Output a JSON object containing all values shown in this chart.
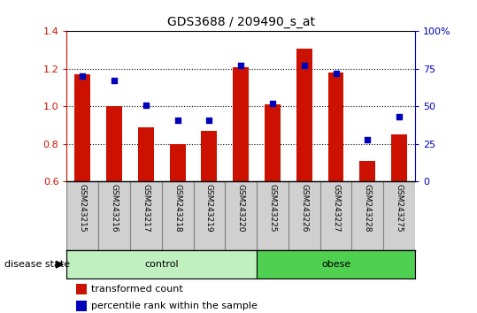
{
  "title": "GDS3688 / 209490_s_at",
  "samples": [
    "GSM243215",
    "GSM243216",
    "GSM243217",
    "GSM243218",
    "GSM243219",
    "GSM243220",
    "GSM243225",
    "GSM243226",
    "GSM243227",
    "GSM243228",
    "GSM243275"
  ],
  "transformed_count": [
    1.17,
    1.0,
    0.89,
    0.8,
    0.87,
    1.21,
    1.01,
    1.31,
    1.18,
    0.71,
    0.85
  ],
  "percentile_rank_pct": [
    70,
    67,
    51,
    41,
    41,
    77,
    52,
    77,
    72,
    28,
    43
  ],
  "ylim_left": [
    0.6,
    1.4
  ],
  "ylim_right": [
    0,
    100
  ],
  "yticks_left": [
    0.6,
    0.8,
    1.0,
    1.2,
    1.4
  ],
  "yticks_right": [
    0,
    25,
    50,
    75,
    100
  ],
  "ytick_left_labels": [
    "0.6",
    "0.8",
    "1.0",
    "1.2",
    "1.4"
  ],
  "ytick_right_labels": [
    "0",
    "25",
    "50",
    "75",
    "100%"
  ],
  "groups": [
    {
      "label": "control",
      "start": 0,
      "end": 6,
      "color": "#c0f0c0"
    },
    {
      "label": "obese",
      "start": 6,
      "end": 11,
      "color": "#50d050"
    }
  ],
  "bar_color": "#cc1100",
  "scatter_color": "#0000bb",
  "bar_width": 0.5,
  "disease_state_label": "disease state",
  "legend_items": [
    {
      "label": "transformed count",
      "color": "#cc1100"
    },
    {
      "label": "percentile rank within the sample",
      "color": "#0000bb"
    }
  ],
  "grid_lines": [
    0.8,
    1.0,
    1.2
  ],
  "label_bg_color": "#d0d0d0",
  "label_border_color": "#808080"
}
